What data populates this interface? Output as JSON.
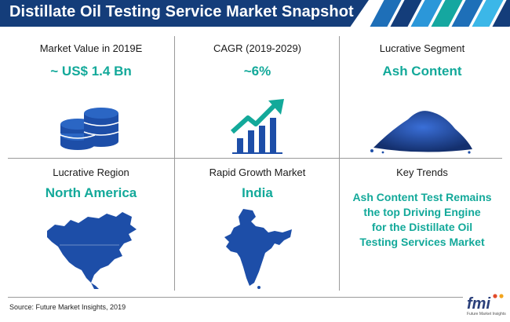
{
  "title": "Distillate Oil Testing Service Market Snapshot",
  "colors": {
    "banner": "#143d7a",
    "accent": "#13a99a",
    "icon_blue": "#1d4ea8",
    "stripes": [
      "#143d7a",
      "#1e6fb8",
      "#2b97d9",
      "#15a7a0",
      "#3bb7e8"
    ]
  },
  "cells": [
    {
      "label": "Market Value in 2019E",
      "value": "~ US$ 1.4 Bn",
      "icon": "coin-stack-icon"
    },
    {
      "label": "CAGR (2019-2029)",
      "value": "~6%",
      "icon": "growth-chart-icon"
    },
    {
      "label": "Lucrative Segment",
      "value": "Ash Content",
      "icon": "ash-powder-icon"
    },
    {
      "label": "Lucrative Region",
      "value": "North America",
      "icon": "north-america-map-icon"
    },
    {
      "label": "Rapid Growth Market",
      "value": "India",
      "icon": "india-map-icon"
    },
    {
      "label": "Key Trends",
      "trend_lines": [
        "Ash Content Test Remains",
        "the top Driving Engine",
        "for the Distillate Oil",
        "Testing Services Market"
      ]
    }
  ],
  "source": "Source: Future Market Insights, 2019",
  "logo": {
    "name": "fmi",
    "tagline": "Future Market Insights"
  }
}
